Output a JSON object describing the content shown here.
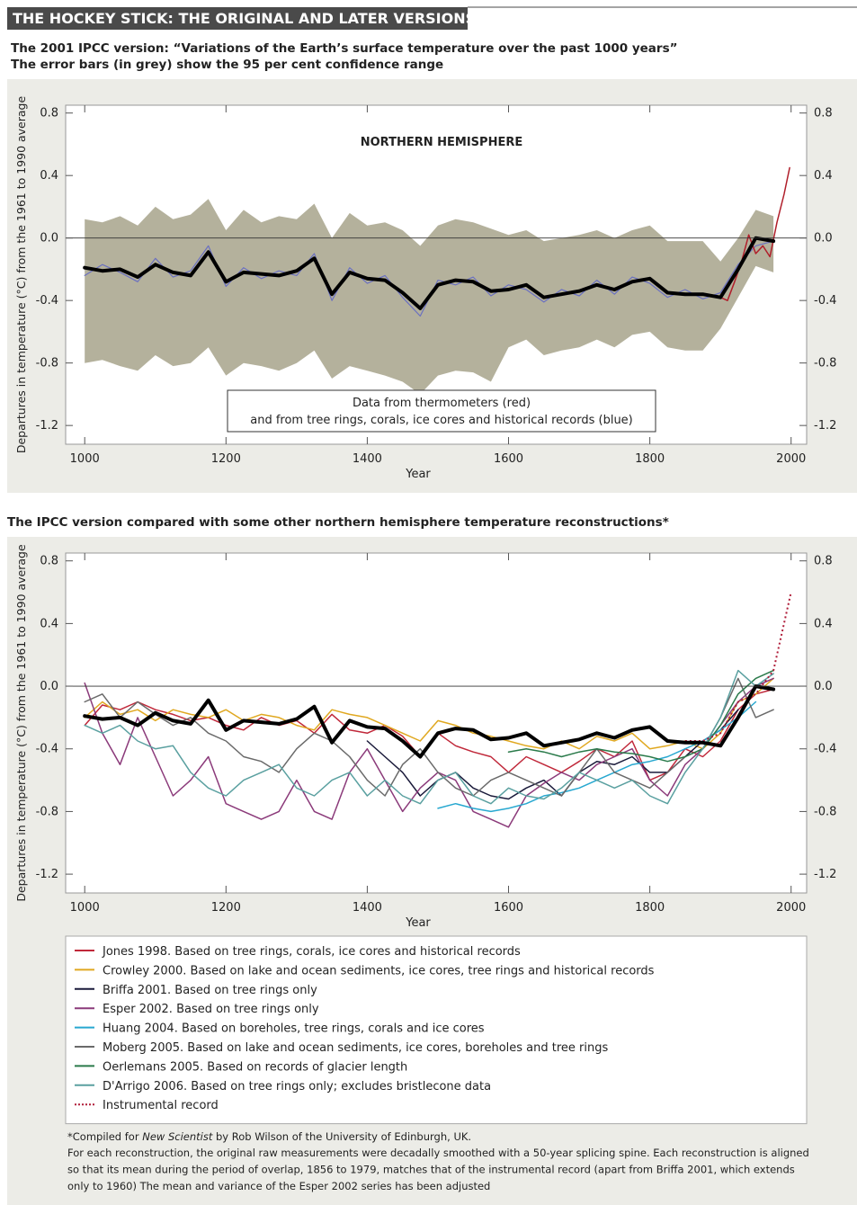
{
  "header": {
    "title": "THE HOCKEY STICK: THE ORIGINAL AND LATER VERSIONS"
  },
  "chart_data": [
    {
      "type": "line",
      "title": "The 2001 IPCC version: “Variations of the Earth’s surface temperature over the past 1000 years”",
      "subtitle": "The error bars (in grey) show the 95 per cent confidence range",
      "panel_label": "NORTHERN HEMISPHERE",
      "annotation": [
        "Data from thermometers (red)",
        "and from tree rings, corals, ice cores and historical records (blue)"
      ],
      "x_label": "Year",
      "y_label": "Departures in temperature (°C) from the 1961 to 1990 average",
      "xlim": [
        973,
        2022
      ],
      "xticks": [
        1000,
        1200,
        1400,
        1600,
        1800,
        2000
      ],
      "ylim": [
        -1.32,
        0.85
      ],
      "yticks": [
        -1.2,
        -0.8,
        -0.4,
        {
          "value": 0,
          "label": "0.0"
        },
        0.4,
        0.8
      ],
      "x": [
        1000,
        1025,
        1050,
        1075,
        1100,
        1125,
        1150,
        1175,
        1200,
        1225,
        1250,
        1275,
        1300,
        1325,
        1350,
        1375,
        1400,
        1425,
        1450,
        1475,
        1500,
        1525,
        1550,
        1575,
        1600,
        1625,
        1650,
        1675,
        1700,
        1725,
        1750,
        1775,
        1800,
        1825,
        1850,
        1875,
        1900,
        1925,
        1950,
        1975,
        2000
      ],
      "series": [
        {
          "color": "#b4b19c",
          "upper": [
            0.12,
            0.1,
            0.14,
            0.08,
            0.2,
            0.12,
            0.15,
            0.25,
            0.05,
            0.18,
            0.1,
            0.14,
            0.12,
            0.22,
            0.0,
            0.16,
            0.08,
            0.1,
            0.05,
            -0.05,
            0.08,
            0.12,
            0.1,
            0.06,
            0.02,
            0.05,
            -0.02,
            0.0,
            0.02,
            0.05,
            0.0,
            0.05,
            0.08,
            -0.02,
            -0.02,
            -0.02,
            -0.15,
            0.0,
            0.18,
            0.14,
            null
          ],
          "lower": [
            -0.8,
            -0.78,
            -0.82,
            -0.85,
            -0.75,
            -0.82,
            -0.8,
            -0.7,
            -0.88,
            -0.8,
            -0.82,
            -0.85,
            -0.8,
            -0.72,
            -0.9,
            -0.82,
            -0.85,
            -0.88,
            -0.92,
            -1.0,
            -0.88,
            -0.85,
            -0.86,
            -0.92,
            -0.7,
            -0.65,
            -0.75,
            -0.72,
            -0.7,
            -0.65,
            -0.7,
            -0.62,
            -0.6,
            -0.7,
            -0.72,
            -0.72,
            -0.58,
            -0.38,
            -0.18,
            -0.22,
            null
          ]
        },
        {
          "color": "#6a70c0",
          "linewidth": 1.2,
          "values": [
            -0.24,
            -0.17,
            -0.22,
            -0.28,
            -0.13,
            -0.25,
            -0.21,
            -0.05,
            -0.31,
            -0.19,
            -0.26,
            -0.21,
            -0.24,
            -0.1,
            -0.4,
            -0.19,
            -0.29,
            -0.24,
            -0.38,
            -0.5,
            -0.27,
            -0.3,
            -0.25,
            -0.37,
            -0.3,
            -0.33,
            -0.41,
            -0.33,
            -0.37,
            -0.27,
            -0.36,
            -0.25,
            -0.29,
            -0.38,
            -0.33,
            -0.39,
            -0.35,
            -0.17,
            -0.05,
            -0.02,
            null
          ]
        },
        {
          "color": "#b01e2a",
          "linewidth": 1.5,
          "x": [
            1900,
            1910,
            1920,
            1930,
            1940,
            1950,
            1960,
            1970,
            1980,
            1990,
            1998
          ],
          "values": [
            -0.38,
            -0.4,
            -0.28,
            -0.15,
            0.02,
            -0.1,
            -0.05,
            -0.12,
            0.1,
            0.28,
            0.45
          ]
        },
        {
          "color": "#000000",
          "linewidth": 4,
          "values": [
            -0.19,
            -0.21,
            -0.2,
            -0.25,
            -0.17,
            -0.22,
            -0.24,
            -0.09,
            -0.28,
            -0.22,
            -0.23,
            -0.24,
            -0.21,
            -0.13,
            -0.36,
            -0.22,
            -0.26,
            -0.27,
            -0.35,
            -0.45,
            -0.3,
            -0.27,
            -0.28,
            -0.34,
            -0.33,
            -0.3,
            -0.38,
            -0.36,
            -0.34,
            -0.3,
            -0.33,
            -0.28,
            -0.26,
            -0.35,
            -0.36,
            -0.36,
            -0.38,
            -0.2,
            0.0,
            -0.02,
            null
          ]
        }
      ]
    },
    {
      "type": "line",
      "title": "The IPCC version compared with some other northern hemisphere temperature reconstructions*",
      "x_label": "Year",
      "y_label": "Departures in temperature (°C) from the 1961 to 1990 average",
      "xlim": [
        973,
        2022
      ],
      "xticks": [
        1000,
        1200,
        1400,
        1600,
        1800,
        2000
      ],
      "ylim": [
        -1.32,
        0.85
      ],
      "yticks": [
        -1.2,
        -0.8,
        -0.4,
        {
          "value": 0,
          "label": "0.0"
        },
        0.4,
        0.8
      ],
      "legend": "below",
      "x": [
        1000,
        1025,
        1050,
        1075,
        1100,
        1125,
        1150,
        1175,
        1200,
        1225,
        1250,
        1275,
        1300,
        1325,
        1350,
        1375,
        1400,
        1425,
        1450,
        1475,
        1500,
        1525,
        1550,
        1575,
        1600,
        1625,
        1650,
        1675,
        1700,
        1725,
        1750,
        1775,
        1800,
        1825,
        1850,
        1875,
        1900,
        1925,
        1950,
        1975,
        2000
      ],
      "series": [
        {
          "name": "Jones 1998. Based on tree rings, corals, ice cores and historical records",
          "color": "#c0283a",
          "linewidth": 1.5,
          "values": [
            -0.25,
            -0.12,
            -0.15,
            -0.1,
            -0.15,
            -0.18,
            -0.22,
            -0.2,
            -0.25,
            -0.28,
            -0.2,
            -0.25,
            -0.22,
            -0.3,
            -0.18,
            -0.28,
            -0.3,
            -0.25,
            -0.32,
            -0.45,
            -0.3,
            -0.38,
            -0.42,
            -0.45,
            -0.55,
            -0.45,
            -0.5,
            -0.55,
            -0.48,
            -0.4,
            -0.45,
            -0.35,
            -0.6,
            -0.55,
            -0.4,
            -0.45,
            -0.35,
            -0.15,
            -0.05,
            -0.02,
            null
          ]
        },
        {
          "name": "Crowley 2000. Based on lake and ocean sediments, ice cores, tree rings and historical records",
          "color": "#e0a820",
          "linewidth": 1.5,
          "values": [
            -0.2,
            -0.1,
            -0.18,
            -0.15,
            -0.22,
            -0.15,
            -0.18,
            -0.2,
            -0.15,
            -0.22,
            -0.18,
            -0.2,
            -0.25,
            -0.28,
            -0.15,
            -0.18,
            -0.2,
            -0.25,
            -0.3,
            -0.35,
            -0.22,
            -0.25,
            -0.3,
            -0.32,
            -0.35,
            -0.38,
            -0.4,
            -0.35,
            -0.4,
            -0.32,
            -0.35,
            -0.3,
            -0.4,
            -0.38,
            -0.35,
            -0.4,
            -0.3,
            -0.1,
            -0.05,
            0.05,
            null
          ]
        },
        {
          "name": "Briffa 2001. Based on tree rings only",
          "color": "#1a1a3a",
          "linewidth": 1.5,
          "values": [
            null,
            null,
            null,
            null,
            null,
            null,
            null,
            null,
            null,
            null,
            null,
            null,
            null,
            null,
            null,
            null,
            -0.35,
            -0.45,
            -0.55,
            -0.7,
            -0.6,
            -0.55,
            -0.65,
            -0.7,
            -0.72,
            -0.65,
            -0.6,
            -0.7,
            -0.55,
            -0.48,
            -0.5,
            -0.45,
            -0.55,
            -0.55,
            -0.45,
            -0.35,
            -0.28,
            -0.15,
            null,
            null,
            null
          ]
        },
        {
          "name": "Esper 2002. Based on tree rings only",
          "color": "#8b3a7a",
          "linewidth": 1.5,
          "values": [
            0.02,
            -0.3,
            -0.5,
            -0.2,
            -0.45,
            -0.7,
            -0.6,
            -0.45,
            -0.75,
            -0.8,
            -0.85,
            -0.8,
            -0.6,
            -0.8,
            -0.85,
            -0.55,
            -0.4,
            -0.6,
            -0.8,
            -0.65,
            -0.55,
            -0.6,
            -0.8,
            -0.85,
            -0.9,
            -0.7,
            -0.62,
            -0.55,
            -0.6,
            -0.5,
            -0.45,
            -0.4,
            -0.6,
            -0.7,
            -0.5,
            -0.4,
            -0.25,
            -0.1,
            0.0,
            0.05,
            null
          ]
        },
        {
          "name": "Huang 2004. Based on boreholes, tree rings, corals and ice cores",
          "color": "#28a8d0",
          "linewidth": 1.5,
          "values": [
            null,
            null,
            null,
            null,
            null,
            null,
            null,
            null,
            null,
            null,
            null,
            null,
            null,
            null,
            null,
            null,
            null,
            null,
            null,
            null,
            -0.78,
            -0.75,
            -0.78,
            -0.8,
            -0.78,
            -0.75,
            -0.7,
            -0.68,
            -0.65,
            -0.6,
            -0.55,
            -0.5,
            -0.48,
            -0.45,
            -0.4,
            -0.35,
            -0.28,
            -0.2,
            -0.1,
            null,
            null
          ]
        },
        {
          "name": "Moberg 2005. Based on lake and ocean sediments, ice cores, boreholes and tree rings",
          "color": "#6a6a6a",
          "linewidth": 1.5,
          "values": [
            -0.1,
            -0.05,
            -0.2,
            -0.1,
            -0.18,
            -0.25,
            -0.2,
            -0.3,
            -0.35,
            -0.45,
            -0.48,
            -0.55,
            -0.4,
            -0.3,
            -0.35,
            -0.45,
            -0.6,
            -0.7,
            -0.5,
            -0.4,
            -0.55,
            -0.65,
            -0.7,
            -0.6,
            -0.55,
            -0.6,
            -0.65,
            -0.7,
            -0.55,
            -0.4,
            -0.55,
            -0.6,
            -0.65,
            -0.55,
            -0.45,
            -0.4,
            -0.2,
            0.05,
            -0.2,
            -0.15,
            null
          ]
        },
        {
          "name": "Oerlemans 2005. Based on records of glacier length",
          "color": "#2a7a4a",
          "linewidth": 1.5,
          "values": [
            null,
            null,
            null,
            null,
            null,
            null,
            null,
            null,
            null,
            null,
            null,
            null,
            null,
            null,
            null,
            null,
            null,
            null,
            null,
            null,
            null,
            null,
            null,
            null,
            -0.42,
            -0.4,
            -0.42,
            -0.45,
            -0.42,
            -0.4,
            -0.42,
            -0.43,
            -0.45,
            -0.48,
            -0.45,
            -0.4,
            -0.25,
            -0.05,
            0.05,
            0.1,
            null
          ]
        },
        {
          "name": "D'Arrigo 2006. Based on tree rings only; excludes bristlecone data",
          "color": "#5aa0a0",
          "linewidth": 1.5,
          "values": [
            -0.25,
            -0.3,
            -0.25,
            -0.35,
            -0.4,
            -0.38,
            -0.55,
            -0.65,
            -0.7,
            -0.6,
            -0.55,
            -0.5,
            -0.65,
            -0.7,
            -0.6,
            -0.55,
            -0.7,
            -0.6,
            -0.7,
            -0.75,
            -0.6,
            -0.55,
            -0.7,
            -0.75,
            -0.65,
            -0.7,
            -0.72,
            -0.65,
            -0.55,
            -0.6,
            -0.65,
            -0.6,
            -0.7,
            -0.75,
            -0.55,
            -0.4,
            -0.2,
            0.1,
            0.0,
            0.08,
            null
          ]
        },
        {
          "name": "Instrumental record",
          "color": "#b01e3a",
          "linewidth": 2,
          "linestyle": "dotted",
          "values": [
            null,
            null,
            null,
            null,
            null,
            null,
            null,
            null,
            null,
            null,
            null,
            null,
            null,
            null,
            null,
            null,
            null,
            null,
            null,
            null,
            null,
            null,
            null,
            null,
            null,
            null,
            null,
            null,
            null,
            null,
            null,
            null,
            null,
            null,
            -0.35,
            -0.35,
            -0.3,
            -0.1,
            -0.05,
            0.1,
            0.6
          ]
        },
        {
          "color": "#000000",
          "linewidth": 4,
          "values": [
            -0.19,
            -0.21,
            -0.2,
            -0.25,
            -0.17,
            -0.22,
            -0.24,
            -0.09,
            -0.28,
            -0.22,
            -0.23,
            -0.24,
            -0.21,
            -0.13,
            -0.36,
            -0.22,
            -0.26,
            -0.27,
            -0.35,
            -0.45,
            -0.3,
            -0.27,
            -0.28,
            -0.34,
            -0.33,
            -0.3,
            -0.38,
            -0.36,
            -0.34,
            -0.3,
            -0.33,
            -0.28,
            -0.26,
            -0.35,
            -0.36,
            -0.36,
            -0.38,
            -0.2,
            0.0,
            -0.02,
            null
          ]
        }
      ]
    }
  ],
  "footnote": {
    "credit": [
      "*Compiled for ",
      "New Scientist",
      " by Rob Wilson of the University of Edinburgh, UK."
    ],
    "note": [
      "For each reconstruction, the original raw measurements were decadally smoothed with a 50-year splicing spine. Each reconstruction is aligned",
      "so that its mean during the period of overlap, 1856 to 1979, matches that of the instrumental record (apart from Briffa 2001, which extends",
      "only to 1960) The mean and variance of the Esper 2002 series has been adjusted"
    ]
  }
}
